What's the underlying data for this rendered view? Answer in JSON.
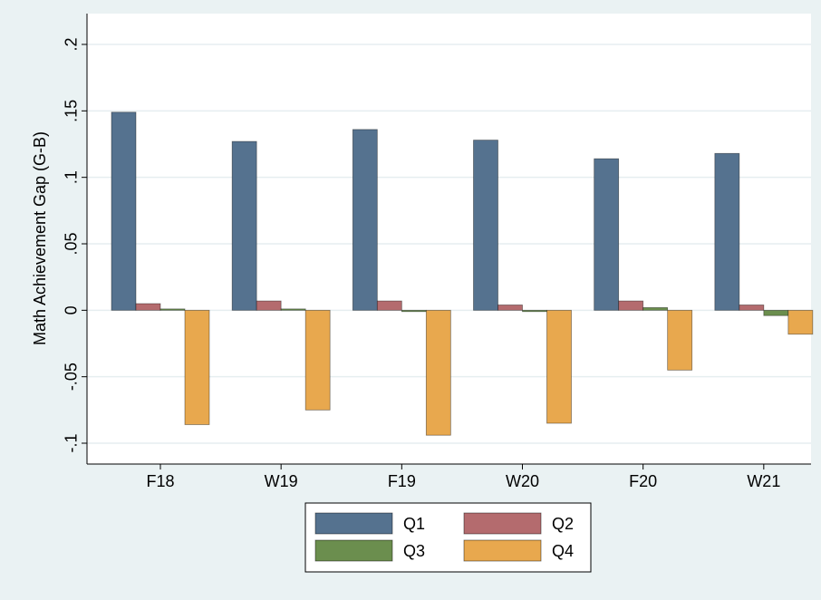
{
  "chart_data": {
    "type": "bar",
    "ylabel": "Math Achievement Gap (G-B)",
    "xlabel": "",
    "categories": [
      "F18",
      "W19",
      "F19",
      "W20",
      "F20",
      "W21"
    ],
    "ylim": [
      -0.1,
      0.2
    ],
    "yticks": [
      -0.1,
      -0.05,
      0,
      0.05,
      0.1,
      0.15,
      0.2
    ],
    "ytick_labels": [
      "-.1",
      "-.05",
      "0",
      ".05",
      ".1",
      ".15",
      ".2"
    ],
    "grid": true,
    "legend_position": "bottom",
    "series": [
      {
        "name": "Q1",
        "color": "#55728f",
        "values": [
          0.149,
          0.127,
          0.136,
          0.128,
          0.114,
          0.118
        ]
      },
      {
        "name": "Q2",
        "color": "#b46b6e",
        "values": [
          0.005,
          0.007,
          0.007,
          0.004,
          0.007,
          0.004
        ]
      },
      {
        "name": "Q3",
        "color": "#6b8e4e",
        "values": [
          0.001,
          0.001,
          -0.001,
          -0.001,
          0.002,
          -0.004
        ]
      },
      {
        "name": "Q4",
        "color": "#e8a84e",
        "values": [
          -0.086,
          -0.075,
          -0.094,
          -0.085,
          -0.045,
          -0.018
        ]
      }
    ]
  }
}
